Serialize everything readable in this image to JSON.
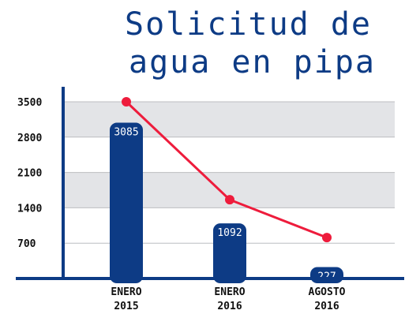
{
  "chart_data": {
    "type": "bar",
    "title": [
      "Solicitud de",
      "agua en pipa"
    ],
    "categories": [
      [
        "ENERO",
        "2015"
      ],
      [
        "ENERO",
        "2016"
      ],
      [
        "AGOSTO",
        "2016"
      ]
    ],
    "values": [
      3085,
      1092,
      227
    ],
    "data_labels": [
      "3085",
      "1092",
      "227"
    ],
    "line_values": [
      3500,
      1560,
      810
    ],
    "y_ticks": [
      700,
      1400,
      2100,
      2800,
      3500
    ],
    "y_tick_labels": [
      "700",
      "1400",
      "2100",
      "2800",
      "3500"
    ],
    "ylim": [
      0,
      3500
    ],
    "grid": true,
    "colors": {
      "bar": "#0d3b85",
      "line": "#ee1c3c",
      "title": "#0d3b85",
      "grid_band": "#e3e4e7",
      "axis": "#0d3b85"
    }
  }
}
